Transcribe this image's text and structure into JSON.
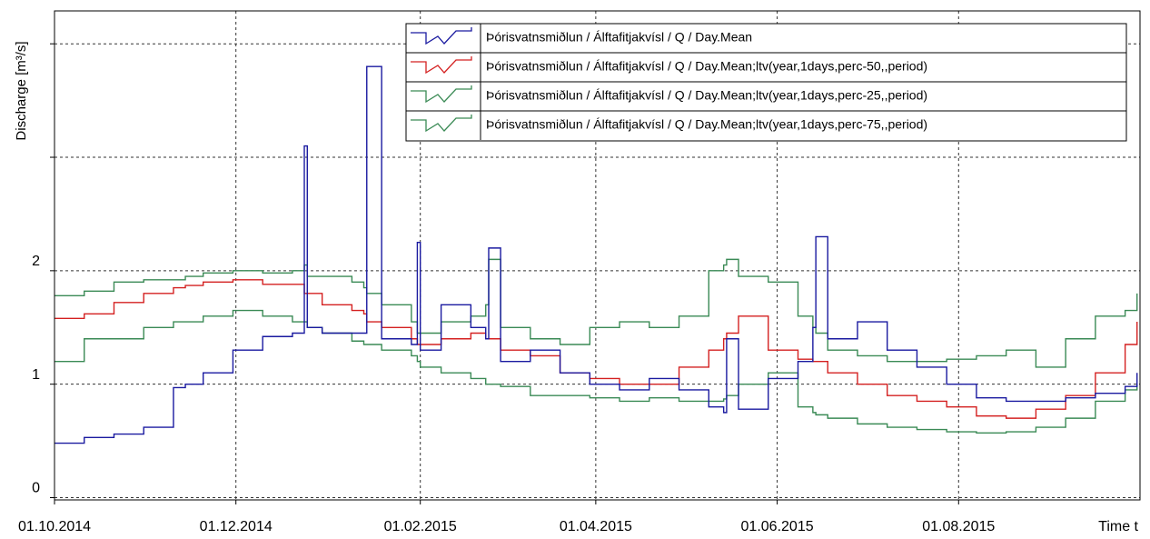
{
  "chart_data": {
    "type": "line",
    "step": true,
    "y_label": "Discharge [m³/s]",
    "x_label": "Time t",
    "xlim": [
      "2014-10-01",
      "2015-10-01"
    ],
    "xticks": [
      {
        "value": "2014-10-01",
        "label": "01.10.2014"
      },
      {
        "value": "2014-12-01",
        "label": "01.12.2014"
      },
      {
        "value": "2015-02-01",
        "label": "01.02.2015"
      },
      {
        "value": "2015-04-01",
        "label": "01.04.2015"
      },
      {
        "value": "2015-06-01",
        "label": "01.06.2015"
      },
      {
        "value": "2015-08-01",
        "label": "01.08.2015"
      }
    ],
    "ylim": [
      -0.02,
      4.29
    ],
    "yticks": [
      0,
      1,
      2,
      {
        "value": 3
      },
      {
        "value": 4
      }
    ],
    "grid": true,
    "legend": "top-right",
    "x": [
      "2014-10-01",
      "2014-10-11",
      "2014-10-21",
      "2014-10-31",
      "2014-11-10",
      "2014-11-14",
      "2014-11-20",
      "2014-11-30",
      "2014-12-10",
      "2014-12-20",
      "2014-12-24",
      "2014-12-25",
      "2014-12-30",
      "2015-01-09",
      "2015-01-13",
      "2015-01-14",
      "2015-01-19",
      "2015-01-29",
      "2015-01-31",
      "2015-02-01",
      "2015-02-08",
      "2015-02-18",
      "2015-02-23",
      "2015-02-24",
      "2015-02-28",
      "2015-03-10",
      "2015-03-20",
      "2015-03-30",
      "2015-04-09",
      "2015-04-19",
      "2015-04-29",
      "2015-05-09",
      "2015-05-14",
      "2015-05-15",
      "2015-05-19",
      "2015-05-29",
      "2015-06-08",
      "2015-06-13",
      "2015-06-14",
      "2015-06-18",
      "2015-06-28",
      "2015-07-08",
      "2015-07-18",
      "2015-07-28",
      "2015-08-07",
      "2015-08-17",
      "2015-08-27",
      "2015-09-06",
      "2015-09-16",
      "2015-09-26",
      "2015-09-30"
    ],
    "series": [
      {
        "name": "Þórisvatnsmiðlun / Álftafitjakvísl / Q / Day.Mean",
        "color": "#1a1aa0",
        "values": [
          0.48,
          0.53,
          0.56,
          0.62,
          0.97,
          1.0,
          1.1,
          1.3,
          1.42,
          1.45,
          3.1,
          1.5,
          1.45,
          1.45,
          1.45,
          3.8,
          1.4,
          1.35,
          2.25,
          1.3,
          1.7,
          1.5,
          1.4,
          2.2,
          1.2,
          1.3,
          1.1,
          1.0,
          0.95,
          1.05,
          0.95,
          0.8,
          0.75,
          1.4,
          0.78,
          1.05,
          1.2,
          1.5,
          2.3,
          1.4,
          1.55,
          1.3,
          1.15,
          1.0,
          0.88,
          0.85,
          0.85,
          0.88,
          0.92,
          0.98,
          1.1
        ]
      },
      {
        "name": "Þórisvatnsmiðlun / Álftafitjakvísl / Q / Day.Mean;ltv(year,1days,perc-50,,period)",
        "color": "#d42020",
        "values": [
          1.58,
          1.62,
          1.72,
          1.8,
          1.85,
          1.87,
          1.9,
          1.92,
          1.88,
          1.88,
          1.8,
          1.8,
          1.7,
          1.65,
          1.62,
          1.55,
          1.5,
          1.4,
          1.35,
          1.35,
          1.4,
          1.45,
          1.4,
          1.4,
          1.3,
          1.25,
          1.1,
          1.05,
          1.0,
          1.0,
          1.15,
          1.3,
          1.4,
          1.45,
          1.6,
          1.3,
          1.22,
          1.2,
          1.2,
          1.1,
          1.0,
          0.9,
          0.85,
          0.8,
          0.72,
          0.7,
          0.78,
          0.9,
          1.1,
          1.35,
          1.55
        ]
      },
      {
        "name": "Þórisvatnsmiðlun / Álftafitjakvísl / Q / Day.Mean;ltv(year,1days,perc-25,,period)",
        "color": "#3a8a55",
        "values": [
          1.2,
          1.4,
          1.4,
          1.5,
          1.55,
          1.55,
          1.6,
          1.65,
          1.6,
          1.55,
          1.55,
          1.5,
          1.45,
          1.38,
          1.35,
          1.35,
          1.3,
          1.25,
          1.2,
          1.15,
          1.1,
          1.05,
          1.0,
          1.0,
          0.98,
          0.9,
          0.9,
          0.88,
          0.85,
          0.88,
          0.85,
          0.85,
          0.87,
          0.9,
          1.0,
          1.1,
          0.8,
          0.75,
          0.73,
          0.7,
          0.65,
          0.62,
          0.6,
          0.58,
          0.57,
          0.58,
          0.62,
          0.7,
          0.85,
          0.95,
          1.0
        ]
      },
      {
        "name": "Þórisvatnsmiðlun / Álftafitjakvísl / Q / Day.Mean;ltv(year,1days,perc-75,,period)",
        "color": "#3a8a55",
        "values": [
          1.78,
          1.82,
          1.9,
          1.92,
          1.92,
          1.95,
          1.98,
          2.0,
          1.98,
          2.0,
          2.05,
          1.95,
          1.95,
          1.9,
          1.85,
          1.8,
          1.7,
          1.55,
          1.45,
          1.45,
          1.55,
          1.6,
          1.7,
          2.1,
          1.5,
          1.4,
          1.35,
          1.5,
          1.55,
          1.5,
          1.6,
          2.0,
          2.05,
          2.1,
          1.95,
          1.9,
          1.6,
          1.5,
          1.45,
          1.3,
          1.25,
          1.2,
          1.2,
          1.22,
          1.25,
          1.3,
          1.15,
          1.4,
          1.6,
          1.65,
          1.8
        ]
      }
    ]
  }
}
